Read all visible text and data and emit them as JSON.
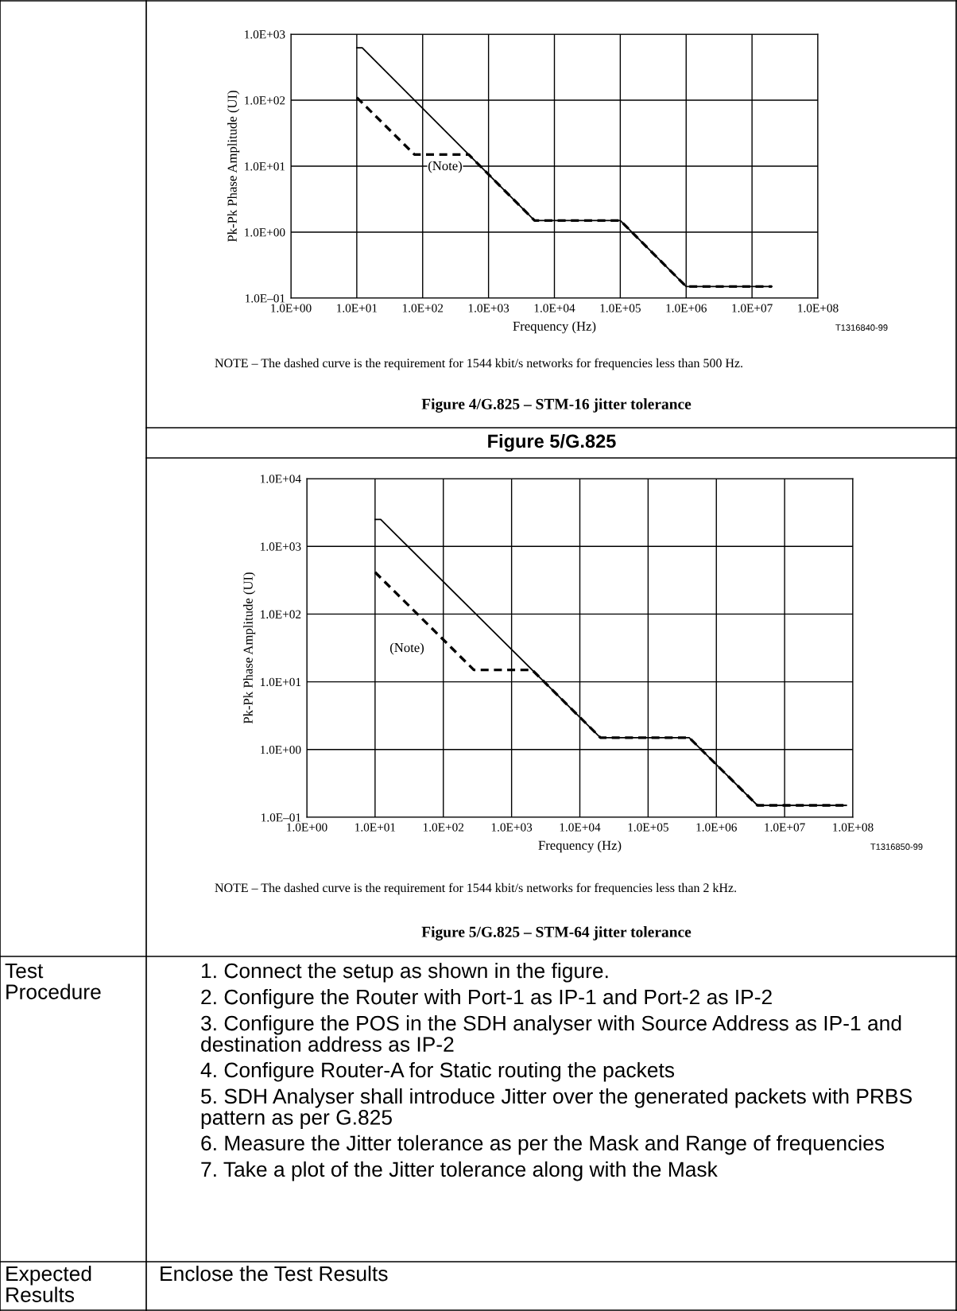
{
  "chart_data": [
    {
      "type": "line",
      "title": "Figure 4/G.825 – STM-16 jitter tolerance",
      "xlabel": "Frequency (Hz)",
      "ylabel": "Pk-Pk Phase Amplitude (UI)",
      "log": "xy",
      "grid": true,
      "xlim": [
        1,
        100000000
      ],
      "ylim": [
        0.1,
        1000
      ],
      "xticks": [
        {
          "value": 1,
          "label": "1.0E+00"
        },
        {
          "value": 10,
          "label": "1.0E+01"
        },
        {
          "value": 100,
          "label": "1.0E+02"
        },
        {
          "value": 1000,
          "label": "1.0E+03"
        },
        {
          "value": 10000,
          "label": "1.0E+04"
        },
        {
          "value": 100000,
          "label": "1.0E+05"
        },
        {
          "value": 1000000,
          "label": "1.0E+06"
        },
        {
          "value": 10000000,
          "label": "1.0E+07"
        },
        {
          "value": 100000000,
          "label": "1.0E+08"
        }
      ],
      "yticks": [
        {
          "value": 0.1,
          "label": "1.0E–01"
        },
        {
          "value": 1,
          "label": "1.0E+00"
        },
        {
          "value": 10,
          "label": "1.0E+01"
        },
        {
          "value": 100,
          "label": "1.0E+02"
        },
        {
          "value": 1000,
          "label": "1.0E+03"
        }
      ],
      "series": [
        {
          "color": "#000000",
          "line_style": "solid",
          "x": [
            10,
            12.1,
            5000,
            100000,
            1000000,
            20000000
          ],
          "values": [
            622,
            622,
            1.5,
            1.5,
            0.15,
            0.15
          ]
        },
        {
          "color": "#000000",
          "line_style": "dashed",
          "x": [
            10,
            75,
            500,
            5000,
            100000,
            1000000,
            20000000
          ],
          "values": [
            110,
            15,
            15,
            1.5,
            1.5,
            0.15,
            0.15
          ]
        }
      ],
      "annotations": [
        "(Note)",
        "T1316840-99",
        "NOTE – The dashed curve is the requirement for 1544 kbit/s networks for frequencies less than 500 Hz."
      ]
    },
    {
      "type": "line",
      "subtitle": "Figure 5/G.825",
      "title": "Figure 5/G.825 – STM-64 jitter tolerance",
      "xlabel": "Frequency (Hz)",
      "ylabel": "Pk-Pk Phase Amplitude (UI)",
      "log": "xy",
      "grid": true,
      "xlim": [
        1,
        100000000
      ],
      "ylim": [
        0.1,
        10000
      ],
      "xticks": [
        {
          "value": 1,
          "label": "1.0E+00"
        },
        {
          "value": 10,
          "label": "1.0E+01"
        },
        {
          "value": 100,
          "label": "1.0E+02"
        },
        {
          "value": 1000,
          "label": "1.0E+03"
        },
        {
          "value": 10000,
          "label": "1.0E+04"
        },
        {
          "value": 100000,
          "label": "1.0E+05"
        },
        {
          "value": 1000000,
          "label": "1.0E+06"
        },
        {
          "value": 10000000,
          "label": "1.0E+07"
        },
        {
          "value": 100000000,
          "label": "1.0E+08"
        }
      ],
      "yticks": [
        {
          "value": 0.1,
          "label": "1.0E–01"
        },
        {
          "value": 1,
          "label": "1.0E+00"
        },
        {
          "value": 10,
          "label": "1.0E+01"
        },
        {
          "value": 100,
          "label": "1.0E+02"
        },
        {
          "value": 1000,
          "label": "1.0E+03"
        },
        {
          "value": 10000,
          "label": "1.0E+04"
        }
      ],
      "series": [
        {
          "color": "#000000",
          "line_style": "solid",
          "x": [
            10,
            12.1,
            20000,
            400000,
            4000000,
            80000000
          ],
          "values": [
            2490,
            2490,
            1.5,
            1.5,
            0.15,
            0.15
          ]
        },
        {
          "color": "#000000",
          "line_style": "dashed",
          "x": [
            10,
            280,
            2000,
            20000,
            400000,
            4000000,
            80000000
          ],
          "values": [
            415,
            15,
            15,
            1.5,
            1.5,
            0.15,
            0.15
          ]
        }
      ],
      "annotations": [
        "(Note)",
        "T1316850-99",
        "NOTE – The dashed curve is the requirement for 1544 kbit/s networks for frequencies less than 2 kHz."
      ]
    },
    {
      "type": "other",
      "annotations": [
        "Test Procedure",
        "1. Connect the setup as shown in the figure.",
        "2. Configure the Router with Port-1 as IP-1 and Port-2 as IP-2",
        "3. Configure the POS in the SDH analyser with Source Address as IP-1 and destination address as IP-2",
        "4. Configure Router-A for Static routing the packets",
        "5. SDH Analyser shall introduce Jitter over the generated packets with PRBS pattern as per G.825",
        "6. Measure the Jitter tolerance as per the Mask and Range of frequencies",
        "7. Take a plot of the Jitter tolerance along with the Mask",
        "Expected Results",
        "Enclose the Test Results"
      ]
    }
  ]
}
